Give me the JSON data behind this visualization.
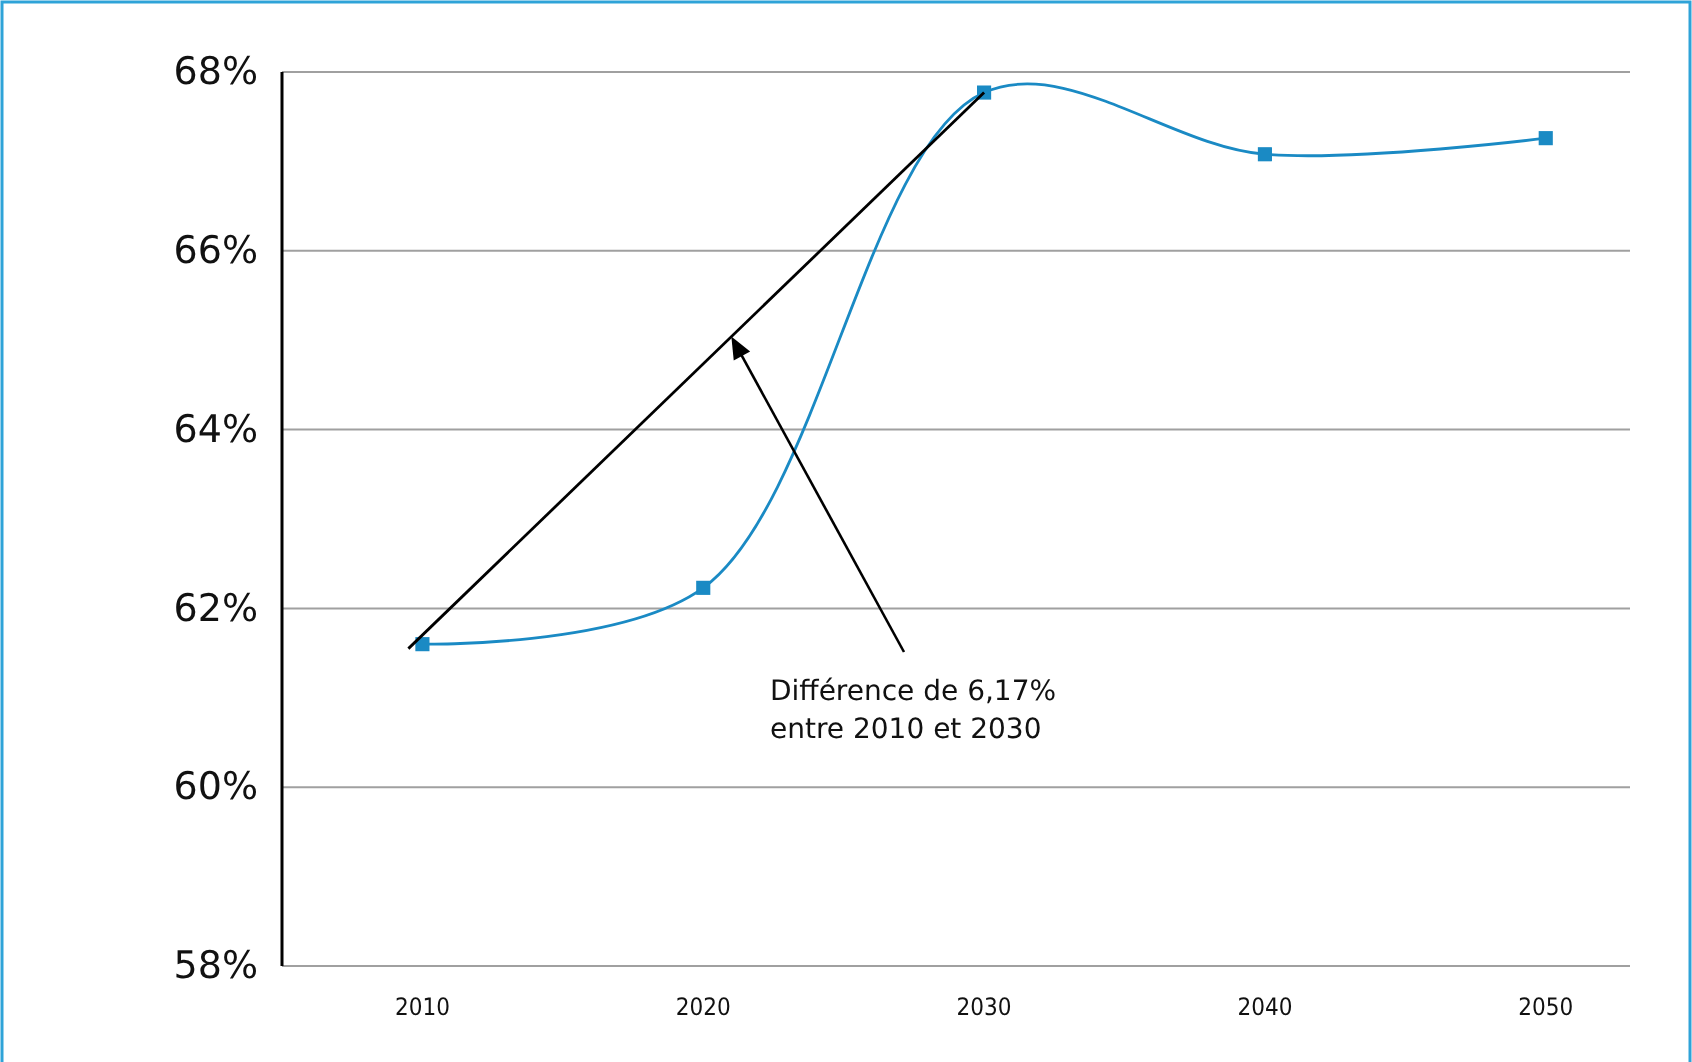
{
  "chart_data": {
    "type": "line",
    "x": [
      2010,
      2020,
      2030,
      2040,
      2050
    ],
    "xlim": [
      2005,
      2053
    ],
    "xticks": [
      2010,
      2020,
      2030,
      2040,
      2050
    ],
    "ylim": [
      58,
      68
    ],
    "yticks": [
      {
        "value": 58,
        "label": "58%"
      },
      {
        "value": 60,
        "label": "60%"
      },
      {
        "value": 62,
        "label": "62%"
      },
      {
        "value": 64,
        "label": "64%"
      },
      {
        "value": 66,
        "label": "66%"
      },
      {
        "value": 68,
        "label": "68%"
      }
    ],
    "grid": "y",
    "marker": "square",
    "line_style": "solid",
    "series": [
      {
        "color": "#1a8ac4",
        "values": [
          61.6,
          62.23,
          67.77,
          67.08,
          67.26
        ]
      },
      {
        "type": "line",
        "color": "#000000",
        "x": [
          2009.5,
          2030
        ],
        "values": [
          61.55,
          67.77
        ],
        "marker": "none"
      }
    ],
    "annotations": [
      {
        "text": "Différence de 6,17%\nentre 2010 et 2030",
        "x": 2021,
        "y": 65.04
      }
    ]
  }
}
